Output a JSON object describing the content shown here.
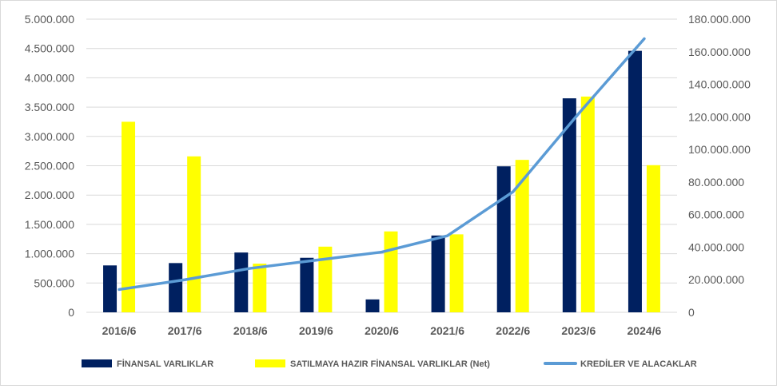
{
  "chart_data": {
    "type": "bar",
    "categories": [
      "2016/6",
      "2017/6",
      "2018/6",
      "2019/6",
      "2020/6",
      "2021/6",
      "2022/6",
      "2023/6",
      "2024/6"
    ],
    "series": [
      {
        "name": "FİNANSAL VARLIKLAR",
        "type": "bar",
        "axis": "left",
        "color": "#002060",
        "values": [
          800000,
          840000,
          1020000,
          930000,
          220000,
          1310000,
          2490000,
          3650000,
          4460000
        ]
      },
      {
        "name": "SATILMAYA HAZIR FİNANSAL VARLIKLAR (Net)",
        "type": "bar",
        "axis": "left",
        "color": "#FFFF00",
        "values": [
          3250000,
          2660000,
          830000,
          1120000,
          1380000,
          1330000,
          2600000,
          3680000,
          2510000
        ]
      },
      {
        "name": "KREDİLER VE ALACAKLAR",
        "type": "line",
        "axis": "right",
        "color": "#5B9BD5",
        "values": [
          14000000,
          20000000,
          27000000,
          32000000,
          37000000,
          47000000,
          74000000,
          122000000,
          168000000
        ]
      }
    ],
    "ylim_left": [
      0,
      5000000
    ],
    "yticks_left": [
      "0",
      "500.000",
      "1.000.000",
      "1.500.000",
      "2.000.000",
      "2.500.000",
      "3.000.000",
      "3.500.000",
      "4.000.000",
      "4.500.000",
      "5.000.000"
    ],
    "ylim_right": [
      0,
      180000000
    ],
    "yticks_right": [
      "0",
      "20.000.000",
      "40.000.000",
      "60.000.000",
      "80.000.000",
      "100.000.000",
      "120.000.000",
      "140.000.000",
      "160.000.000",
      "180.000.000"
    ],
    "grid": true,
    "legend_position": "bottom"
  }
}
